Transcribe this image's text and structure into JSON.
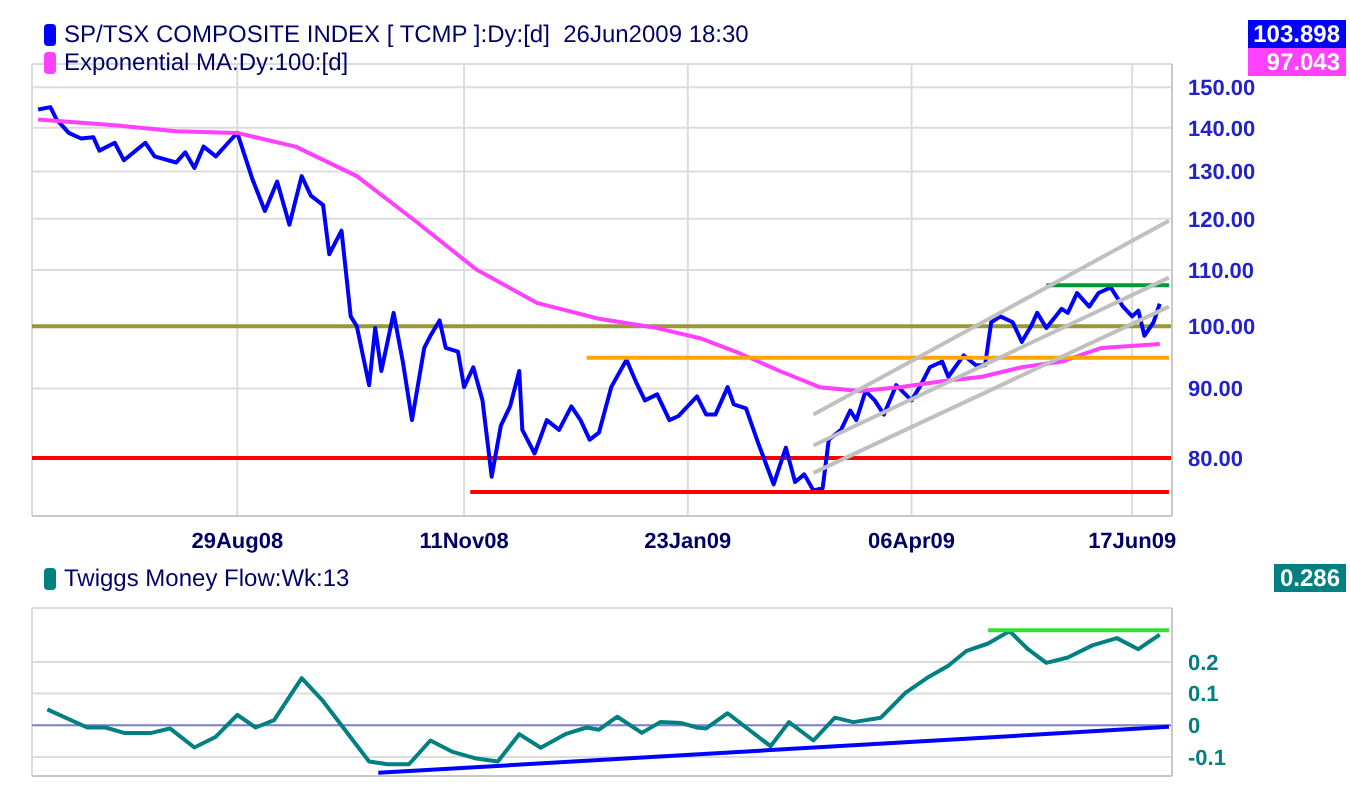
{
  "chart_data": [
    {
      "type": "line",
      "log": true,
      "grid": true,
      "legend": "top left",
      "xlim": [
        "2008-06-23",
        "2009-06-30"
      ],
      "xticks": [
        {
          "value": "2008-08-29",
          "label": "29Aug08"
        },
        {
          "value": "2008-11-11",
          "label": "11Nov08"
        },
        {
          "value": "2009-01-23",
          "label": "23Jan09"
        },
        {
          "value": "2009-04-06",
          "label": "06Apr09"
        },
        {
          "value": "2009-06-17",
          "label": "17Jun09"
        }
      ],
      "ylim": [
        72.5,
        156
      ],
      "yticks": [
        {
          "value": 80,
          "label": "80.00"
        },
        {
          "value": 90,
          "label": "90.00"
        },
        {
          "value": 100,
          "label": "100.00"
        },
        {
          "value": 110,
          "label": "110.00"
        },
        {
          "value": 120,
          "label": "120.00"
        },
        {
          "value": 130,
          "label": "130.00"
        },
        {
          "value": 140,
          "label": "140.00"
        },
        {
          "value": 150,
          "label": "150.00"
        }
      ],
      "annotations": [
        "103.898",
        "97.043"
      ],
      "ref_lines": [
        {
          "axis": "y",
          "value": 100,
          "color": "#999933"
        },
        {
          "axis": "y",
          "value": 80,
          "color": "#ff0000"
        }
      ],
      "series": [
        {
          "name": "SP/TSX COMPOSITE INDEX [ TCMP ]:Dy:[d]  26Jun2009 18:30",
          "color": "#0000ff",
          "x": [
            "2008-06-25",
            "2008-06-29",
            "2008-07-01",
            "2008-07-05",
            "2008-07-09",
            "2008-07-13",
            "2008-07-15",
            "2008-07-20",
            "2008-07-23",
            "2008-07-30",
            "2008-08-02",
            "2008-08-09",
            "2008-08-12",
            "2008-08-15",
            "2008-08-18",
            "2008-08-22",
            "2008-08-26",
            "2008-08-29",
            "2008-09-03",
            "2008-09-07",
            "2008-09-11",
            "2008-09-15",
            "2008-09-19",
            "2008-09-22",
            "2008-09-26",
            "2008-09-28",
            "2008-10-02",
            "2008-10-05",
            "2008-10-07",
            "2008-10-11",
            "2008-10-13",
            "2008-10-15",
            "2008-10-19",
            "2008-10-22",
            "2008-10-25",
            "2008-10-29",
            "2008-10-31",
            "2008-11-03",
            "2008-11-05",
            "2008-11-09",
            "2008-11-11",
            "2008-11-14",
            "2008-11-17",
            "2008-11-20",
            "2008-11-23",
            "2008-11-26",
            "2008-11-29",
            "2008-11-30",
            "2008-12-04",
            "2008-12-08",
            "2008-12-12",
            "2008-12-16",
            "2008-12-19",
            "2008-12-22",
            "2008-12-25",
            "2008-12-29",
            "2009-01-03",
            "2009-01-06",
            "2009-01-09",
            "2009-01-13",
            "2009-01-17",
            "2009-01-20",
            "2009-01-26",
            "2009-01-29",
            "2009-02-01",
            "2009-02-05",
            "2009-02-07",
            "2009-02-11",
            "2009-02-15",
            "2009-02-20",
            "2009-02-24",
            "2009-02-27",
            "2009-03-02",
            "2009-03-05",
            "2009-03-08",
            "2009-03-10",
            "2009-03-14",
            "2009-03-17",
            "2009-03-19",
            "2009-03-22",
            "2009-03-25",
            "2009-03-28",
            "2009-04-01",
            "2009-04-06",
            "2009-04-09",
            "2009-04-12",
            "2009-04-16",
            "2009-04-18",
            "2009-04-23",
            "2009-04-27",
            "2009-04-30",
            "2009-05-02",
            "2009-05-05",
            "2009-05-09",
            "2009-05-12",
            "2009-05-15",
            "2009-05-17",
            "2009-05-20",
            "2009-05-25",
            "2009-05-27",
            "2009-05-30",
            "2009-06-03",
            "2009-06-06",
            "2009-06-10",
            "2009-06-14",
            "2009-06-17",
            "2009-06-19",
            "2009-06-21",
            "2009-06-24",
            "2009-06-26"
          ],
          "values": [
            144.4,
            145,
            142,
            138.8,
            137.5,
            137.8,
            134.7,
            136.5,
            132.5,
            136.5,
            133.4,
            132,
            134.3,
            130.8,
            135.6,
            133.4,
            136.5,
            138.8,
            128.2,
            121.6,
            127.8,
            118.8,
            129,
            124.8,
            122.8,
            113,
            117.6,
            101.7,
            100,
            90.5,
            99.7,
            92.7,
            102.3,
            94.2,
            85.3,
            96.4,
            98.4,
            101,
            96.4,
            95.8,
            90.2,
            93.3,
            88.2,
            77.5,
            84.5,
            87.3,
            92.7,
            83.9,
            80.6,
            85.3,
            83.9,
            87.3,
            85.3,
            82.5,
            83.5,
            90.2,
            94.5,
            91.1,
            88.2,
            89.1,
            85.3,
            85.9,
            88.8,
            86.1,
            86.1,
            90.2,
            87.6,
            87,
            82,
            76.5,
            81.4,
            76.8,
            77.8,
            75.7,
            76,
            82.5,
            83.9,
            86.7,
            85.3,
            89.6,
            88.2,
            86.1,
            90.5,
            88.2,
            90.5,
            93.3,
            94.2,
            91.8,
            95.2,
            93.6,
            93.6,
            100.7,
            101.7,
            100.7,
            97.4,
            100,
            102.3,
            99.7,
            103,
            102.3,
            105.8,
            103.4,
            105.8,
            106.8,
            103.4,
            101.7,
            102.7,
            98.4,
            100.7,
            103.898
          ]
        },
        {
          "name": "Exponential MA:Dy:100:[d]",
          "color": "#ff40ff",
          "x": [
            "2008-06-25",
            "2008-07-20",
            "2008-08-09",
            "2008-08-29",
            "2008-09-17",
            "2008-10-07",
            "2008-10-26",
            "2008-11-15",
            "2008-12-05",
            "2008-12-25",
            "2009-01-13",
            "2009-01-27",
            "2009-02-09",
            "2009-02-22",
            "2009-03-07",
            "2009-03-20",
            "2009-04-02",
            "2009-04-16",
            "2009-04-29",
            "2009-05-12",
            "2009-05-25",
            "2009-06-07",
            "2009-06-26"
          ],
          "values": [
            142,
            140.6,
            139.2,
            138.8,
            135.6,
            129,
            119.6,
            110.1,
            104,
            101.3,
            99.7,
            98,
            95.5,
            92.7,
            90.2,
            89.6,
            90.2,
            91.1,
            91.8,
            93.3,
            94.2,
            96.4,
            97.043
          ]
        },
        {
          "color": "#ffa500",
          "x": [
            "2008-12-21",
            "2009-06-29"
          ],
          "values": [
            94.8,
            94.8
          ]
        },
        {
          "color": "#ff0000",
          "x": [
            "2008-11-13",
            "2009-06-29"
          ],
          "values": [
            75.5,
            75.5
          ]
        },
        {
          "color": "#009933",
          "x": [
            "2009-05-20",
            "2009-06-29"
          ],
          "values": [
            107.2,
            107.2
          ]
        },
        {
          "color": "#c0c0c0",
          "x": [
            "2009-03-05",
            "2009-06-29"
          ],
          "values": [
            86.1,
            119.6
          ]
        },
        {
          "color": "#c0c0c0",
          "x": [
            "2009-03-05",
            "2009-06-29"
          ],
          "values": [
            81.7,
            108.6
          ]
        },
        {
          "color": "#c0c0c0",
          "x": [
            "2009-03-05",
            "2009-06-29"
          ],
          "values": [
            78,
            103.4
          ]
        }
      ]
    },
    {
      "type": "line",
      "grid": true,
      "legend": "top left",
      "tick_labels": "y",
      "xlim": [
        "2008-06-23",
        "2009-06-30"
      ],
      "xticks": [
        {
          "value": "2008-08-29",
          "label": null
        },
        {
          "value": "2008-11-11",
          "label": null
        },
        {
          "value": "2009-01-23",
          "label": null
        },
        {
          "value": "2009-04-06",
          "label": null
        },
        {
          "value": "2009-06-17",
          "label": null
        }
      ],
      "ylim": [
        -0.16,
        0.37
      ],
      "yticks": [
        -0.1,
        0,
        0.1,
        0.2
      ],
      "annotations": [
        "0.286"
      ],
      "ref_lines": [
        {
          "axis": "y",
          "value": 0,
          "color": "#8080cc"
        }
      ],
      "series": [
        {
          "name": "Twiggs Money Flow:Wk:13",
          "color": "#008080",
          "x": [
            "2008-06-28",
            "2008-07-11",
            "2008-07-17",
            "2008-07-23",
            "2008-08-01",
            "2008-08-07",
            "2008-08-15",
            "2008-08-22",
            "2008-08-29",
            "2008-09-04",
            "2008-09-10",
            "2008-09-19",
            "2008-09-26",
            "2008-10-11",
            "2008-10-17",
            "2008-10-24",
            "2008-10-31",
            "2008-11-07",
            "2008-11-15",
            "2008-11-22",
            "2008-11-29",
            "2008-12-06",
            "2008-12-14",
            "2008-12-21",
            "2008-12-25",
            "2008-12-31",
            "2009-01-08",
            "2009-01-14",
            "2009-01-21",
            "2009-01-26",
            "2009-01-29",
            "2009-02-05",
            "2009-02-19",
            "2009-02-25",
            "2009-03-05",
            "2009-03-12",
            "2009-03-18",
            "2009-03-27",
            "2009-04-04",
            "2009-04-11",
            "2009-04-18",
            "2009-04-24",
            "2009-05-01",
            "2009-05-08",
            "2009-05-14",
            "2009-05-20",
            "2009-05-27",
            "2009-06-04",
            "2009-06-12",
            "2009-06-19",
            "2009-06-26"
          ],
          "values": [
            0.05,
            -0.007,
            -0.007,
            -0.024,
            -0.024,
            -0.01,
            -0.07,
            -0.036,
            0.033,
            -0.007,
            0.016,
            0.149,
            0.076,
            -0.114,
            -0.123,
            -0.123,
            -0.048,
            -0.083,
            -0.105,
            -0.114,
            -0.028,
            -0.071,
            -0.028,
            -0.007,
            -0.014,
            0.027,
            -0.024,
            0.01,
            0.007,
            -0.007,
            -0.01,
            0.038,
            -0.066,
            0.01,
            -0.048,
            0.024,
            0.01,
            0.024,
            0.102,
            0.149,
            0.188,
            0.235,
            0.258,
            0.297,
            0.24,
            0.197,
            0.214,
            0.252,
            0.275,
            0.24,
            0.286
          ]
        },
        {
          "color": "#0000ff",
          "x": [
            "2008-10-14",
            "2009-06-29"
          ],
          "values": [
            -0.15,
            -0.005
          ]
        },
        {
          "color": "#33dd33",
          "x": [
            "2009-05-01",
            "2009-06-29"
          ],
          "values": [
            0.3,
            0.3
          ]
        }
      ]
    }
  ]
}
